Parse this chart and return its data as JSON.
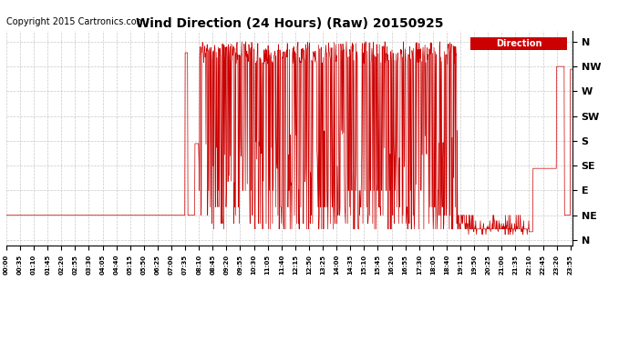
{
  "title": "Wind Direction (24 Hours) (Raw) 20150925",
  "copyright_text": "Copyright 2015 Cartronics.com",
  "legend_label": "Direction",
  "legend_bg": "#cc0000",
  "legend_text_color": "#ffffff",
  "line_color": "#cc0000",
  "bg_color": "#ffffff",
  "grid_color": "#bbbbbb",
  "ytick_labels": [
    "N",
    "NE",
    "E",
    "SE",
    "S",
    "SW",
    "W",
    "NW",
    "N"
  ],
  "ytick_values": [
    0,
    45,
    90,
    135,
    180,
    225,
    270,
    315,
    360
  ],
  "ylim": [
    -10,
    380
  ],
  "xlim_hours": [
    0,
    24
  ],
  "xtick_step_minutes": 35,
  "title_fontsize": 10,
  "ytick_fontsize": 8,
  "xtick_fontsize": 5,
  "copyright_fontsize": 7
}
